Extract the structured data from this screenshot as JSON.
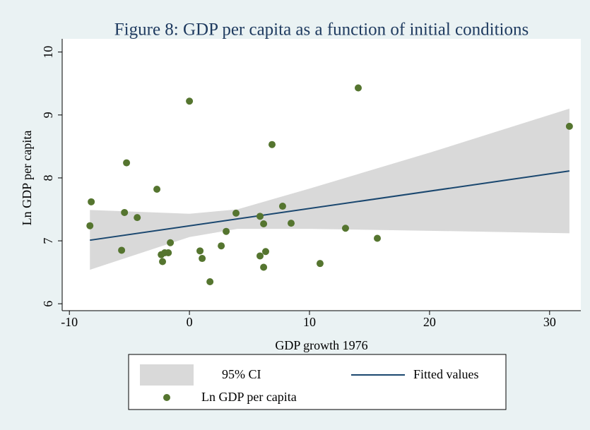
{
  "chart_data": {
    "type": "scatter",
    "title": "Figure 8: GDP per capita as a function of initial conditions",
    "x_label": "GDP growth 1976",
    "y_label": "Ln GDP per capita",
    "xlim": [
      -10.6,
      32.6
    ],
    "ylim": [
      5.89,
      10.21
    ],
    "xticks": [
      -10,
      0,
      10,
      20,
      30
    ],
    "yticks": [
      6,
      7,
      8,
      9,
      10
    ],
    "ci": {
      "name": "95% CI",
      "color": "#d9d9d9",
      "x": [
        -8.29,
        0,
        4,
        10,
        20,
        31.65
      ],
      "lower": [
        6.54,
        7.06,
        7.19,
        7.19,
        7.16,
        7.12
      ],
      "upper": [
        7.49,
        7.43,
        7.5,
        7.83,
        8.4,
        9.1
      ]
    },
    "fit": {
      "name": "Fitted values",
      "color": "#1a476f",
      "x": [
        -8.29,
        31.65
      ],
      "values": [
        7.01,
        8.11
      ]
    },
    "points": {
      "name": "Ln GDP per capita",
      "color": "#55752f",
      "x": [
        -8.29,
        -8.18,
        -5.65,
        -5.41,
        -5.24,
        -4.35,
        -2.71,
        -2.35,
        -2.24,
        -2.06,
        -1.76,
        -1.59,
        0,
        0.88,
        1.06,
        1.71,
        2.65,
        3.06,
        3.88,
        5.88,
        5.88,
        6.18,
        6.18,
        6.35,
        6.88,
        7.76,
        8.47,
        10.88,
        13.0,
        14.06,
        15.65,
        31.65
      ],
      "values": [
        7.24,
        7.62,
        6.85,
        7.45,
        8.24,
        7.37,
        7.82,
        6.78,
        6.67,
        6.81,
        6.81,
        6.97,
        9.22,
        6.84,
        6.72,
        6.35,
        6.92,
        7.15,
        7.44,
        7.39,
        6.76,
        7.27,
        6.58,
        6.83,
        8.53,
        7.55,
        7.28,
        6.64,
        7.2,
        9.43,
        7.04,
        8.82
      ]
    }
  }
}
